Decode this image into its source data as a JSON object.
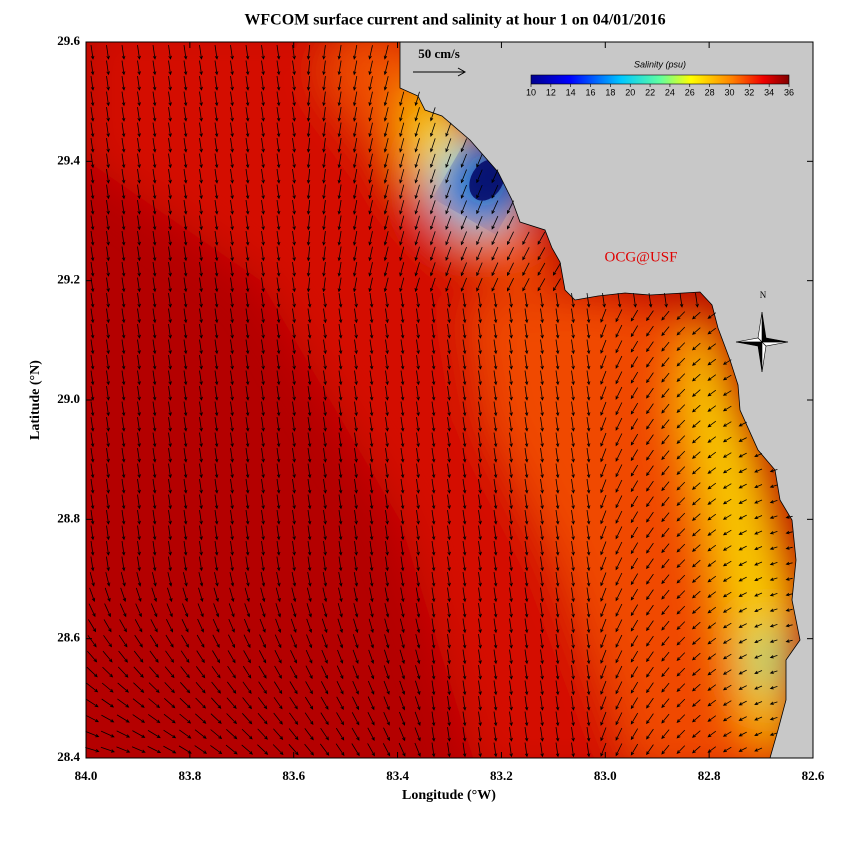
{
  "chart_data": {
    "type": "map",
    "title": "WFCOM surface current and salinity at hour 1 on 04/01/2016",
    "x_label": "Longitude (°W)",
    "y_label": "Latitude (°N)",
    "xlim": [
      84,
      82.6
    ],
    "ylim": [
      28.4,
      29.6
    ],
    "xticks": [
      {
        "value": 84,
        "label": "84.0"
      },
      83.8,
      83.6,
      83.4,
      83.2,
      {
        "value": 83,
        "label": "83.0"
      },
      82.8,
      82.6
    ],
    "yticks": [
      29.6,
      29.4,
      29.2,
      {
        "value": 29,
        "label": "29.0"
      },
      28.8,
      28.6,
      28.4
    ],
    "colorbar": {
      "title": "Salinity (psu)",
      "lim": [
        10,
        36
      ],
      "ticks": [
        10,
        12,
        14,
        16,
        18,
        20,
        22,
        24,
        26,
        28,
        30,
        32,
        34,
        36
      ]
    },
    "annotations": {
      "scale": "50 cm/s",
      "credit": "OCG@USF",
      "north": "N"
    }
  }
}
